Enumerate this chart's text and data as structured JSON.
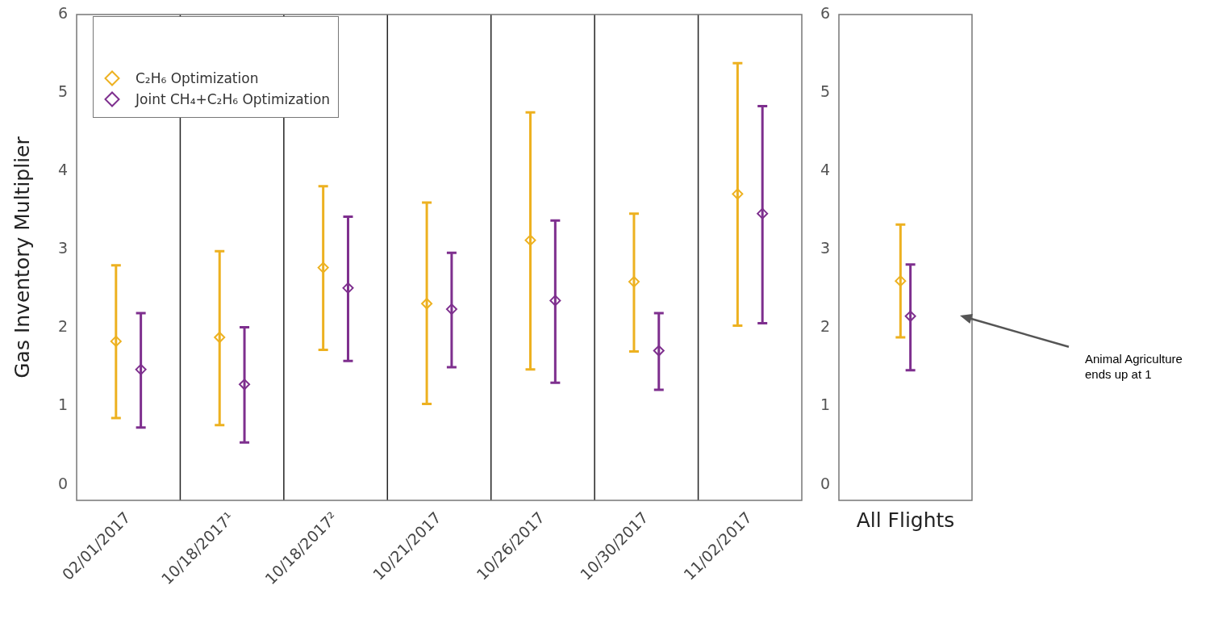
{
  "chart_data": [
    {
      "type": "scatter",
      "ylabel": "Gas Inventory Multiplier",
      "categories": [
        "02/01/2017",
        "10/18/2017¹",
        "10/18/2017²",
        "10/21/2017",
        "10/26/2017",
        "10/30/2017",
        "11/02/2017"
      ],
      "series": [
        {
          "name": "C₂H₆ Optimization",
          "color": "#edb120",
          "values": [
            1.83,
            1.88,
            2.77,
            2.31,
            3.12,
            2.59,
            3.71
          ],
          "errors": [
            [
              0.85,
              2.8
            ],
            [
              0.76,
              2.98
            ],
            [
              1.72,
              3.81
            ],
            [
              1.03,
              3.6
            ],
            [
              1.47,
              4.75
            ],
            [
              1.7,
              3.46
            ],
            [
              2.03,
              5.38
            ]
          ]
        },
        {
          "name": "Joint CH₄+C₂H₆ Optimization",
          "color": "#7e2f8e",
          "values": [
            1.47,
            1.28,
            2.51,
            2.24,
            2.35,
            1.71,
            3.46
          ],
          "errors": [
            [
              0.73,
              2.19
            ],
            [
              0.54,
              2.01
            ],
            [
              1.58,
              3.42
            ],
            [
              1.5,
              2.96
            ],
            [
              1.3,
              3.37
            ],
            [
              1.21,
              2.19
            ],
            [
              2.06,
              4.83
            ]
          ]
        }
      ],
      "ylim": [
        -0.2,
        6
      ],
      "yticks": [
        0,
        1,
        2,
        3,
        4,
        5,
        6
      ],
      "grid": "x",
      "legend": "top left",
      "marker": "diamond"
    },
    {
      "type": "scatter",
      "categories": [
        "All Flights"
      ],
      "series": [
        {
          "color": "#edb120",
          "values": [
            2.6
          ],
          "errors": [
            [
              1.88,
              3.32
            ]
          ]
        },
        {
          "color": "#7e2f8e",
          "values": [
            2.15
          ],
          "errors": [
            [
              1.46,
              2.81
            ]
          ]
        }
      ],
      "ylim": [
        -0.2,
        6
      ],
      "yticks": [
        0,
        1,
        2,
        3,
        4,
        5,
        6
      ],
      "marker": "diamond",
      "annotations": [
        "Animal Agriculture ends up at 1"
      ]
    }
  ]
}
